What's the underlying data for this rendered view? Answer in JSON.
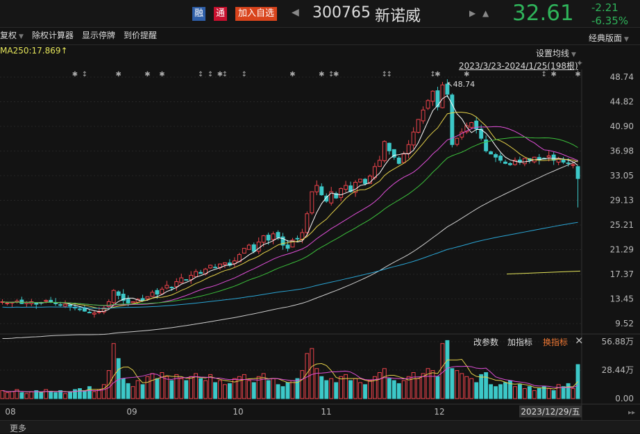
{
  "header": {
    "tag_rong": "融",
    "tag_tong": "通",
    "add_watch": "加入自选",
    "code": "300765",
    "name": "新诺威",
    "price": "32.61",
    "change": "-2.21",
    "change_pct": "-6.35%",
    "colors": {
      "rong": "#2f5fa8",
      "tong": "#c8102e",
      "add": "#d9441c",
      "down": "#2fb35a"
    }
  },
  "toolbar": {
    "items": [
      "复权",
      "除权计算器",
      "显示停牌",
      "到价提醒"
    ],
    "layout": "经典版面"
  },
  "main": {
    "ma250_label": "MA250:17.869",
    "set_ma": "设置均线",
    "range": "2023/3/23-2024/1/25(198根)",
    "peak_label": "48.74"
  },
  "volume_panel": {
    "actions": [
      "改参数",
      "加指标",
      "换指标"
    ],
    "close": "×"
  },
  "footer": {
    "more": "更多"
  },
  "chart_data": {
    "type": "candlestick",
    "y_ticks": [
      "48.74",
      "44.82",
      "40.90",
      "36.98",
      "33.05",
      "29.13",
      "25.21",
      "21.29",
      "17.37",
      "13.45",
      "9.52"
    ],
    "ylim": [
      9.52,
      48.74
    ],
    "x_ticks": [
      "08",
      "09",
      "10",
      "11",
      "12"
    ],
    "cursor_date": "2023/12/29/五",
    "volume_ticks": [
      "56.88万",
      "28.44万",
      "0.00"
    ],
    "volume_ylim": [
      0,
      56.88
    ],
    "last_bar": {
      "close": 32.61,
      "low": 28.0,
      "high": 34.6
    },
    "ma250_segment": [
      17.4,
      17.87
    ],
    "closes": [
      13,
      12.8,
      12.9,
      13.1,
      12.7,
      12.9,
      13.0,
      12.6,
      12.8,
      13.2,
      13.0,
      12.7,
      12.5,
      12.6,
      12.3,
      12.0,
      11.8,
      11.5,
      11.3,
      11.2,
      11.4,
      12.0,
      13.0,
      14.8,
      14.0,
      13.2,
      12.8,
      13.0,
      13.4,
      13.2,
      13.8,
      14.5,
      14.2,
      15.0,
      15.6,
      15.3,
      16.2,
      16.8,
      16.5,
      17.2,
      17.8,
      17.5,
      18.2,
      18.8,
      18.5,
      19.0,
      19.2,
      18.8,
      19.5,
      20.5,
      21.5,
      22.0,
      21.0,
      22.5,
      23.5,
      22.8,
      23.8,
      23.2,
      22.0,
      21.5,
      22.8,
      23.0,
      24.0,
      27.0,
      30.5,
      31.5,
      30.0,
      29.0,
      30.5,
      29.5,
      31.0,
      31.5,
      30.5,
      32.0,
      32.5,
      31.8,
      33.0,
      34.5,
      35.5,
      38.5,
      37.0,
      36.0,
      35.0,
      36.5,
      38.0,
      40.0,
      42.0,
      43.5,
      45.0,
      46.5,
      44.0,
      47.5,
      46.0,
      38.0,
      39.0,
      40.0,
      41.0,
      41.5,
      40.5,
      39.0,
      37.0,
      36.5,
      36.0,
      35.5,
      35.0,
      34.8,
      35.5,
      35.2,
      35.8,
      35.5,
      36.0,
      35.6,
      35.8,
      36.2,
      35.5,
      35.8,
      35.2,
      35.0,
      34.8,
      32.6
    ],
    "volumes": [
      8,
      6,
      7,
      9,
      6,
      5,
      7,
      8,
      6,
      9,
      7,
      6,
      8,
      5,
      7,
      9,
      10,
      8,
      12,
      7,
      9,
      14,
      28,
      55,
      40,
      20,
      15,
      12,
      18,
      14,
      22,
      25,
      20,
      26,
      22,
      18,
      24,
      20,
      18,
      22,
      25,
      20,
      18,
      24,
      16,
      18,
      14,
      15,
      20,
      22,
      24,
      18,
      16,
      22,
      25,
      18,
      20,
      14,
      12,
      16,
      18,
      20,
      28,
      45,
      50,
      30,
      22,
      18,
      20,
      16,
      22,
      24,
      18,
      20,
      16,
      14,
      18,
      22,
      26,
      30,
      20,
      18,
      15,
      18,
      22,
      26,
      20,
      25,
      30,
      28,
      22,
      55,
      58,
      30,
      28,
      25,
      22,
      20,
      16,
      24,
      26,
      14,
      12,
      14,
      16,
      18,
      12,
      14,
      10,
      12,
      8,
      10,
      12,
      10,
      8,
      14,
      12,
      15,
      10,
      34
    ],
    "ma_colors": {
      "ma5": "#ffffff",
      "ma10": "#e6d24a",
      "ma20": "#e04fd8",
      "ma30": "#3cc23c",
      "ma60": "#cfcfcf",
      "ma120": "#2aa6d6",
      "ma250": "#e6e65a"
    },
    "up_color": "#f0444c",
    "down_color": "#3cc8c8"
  }
}
